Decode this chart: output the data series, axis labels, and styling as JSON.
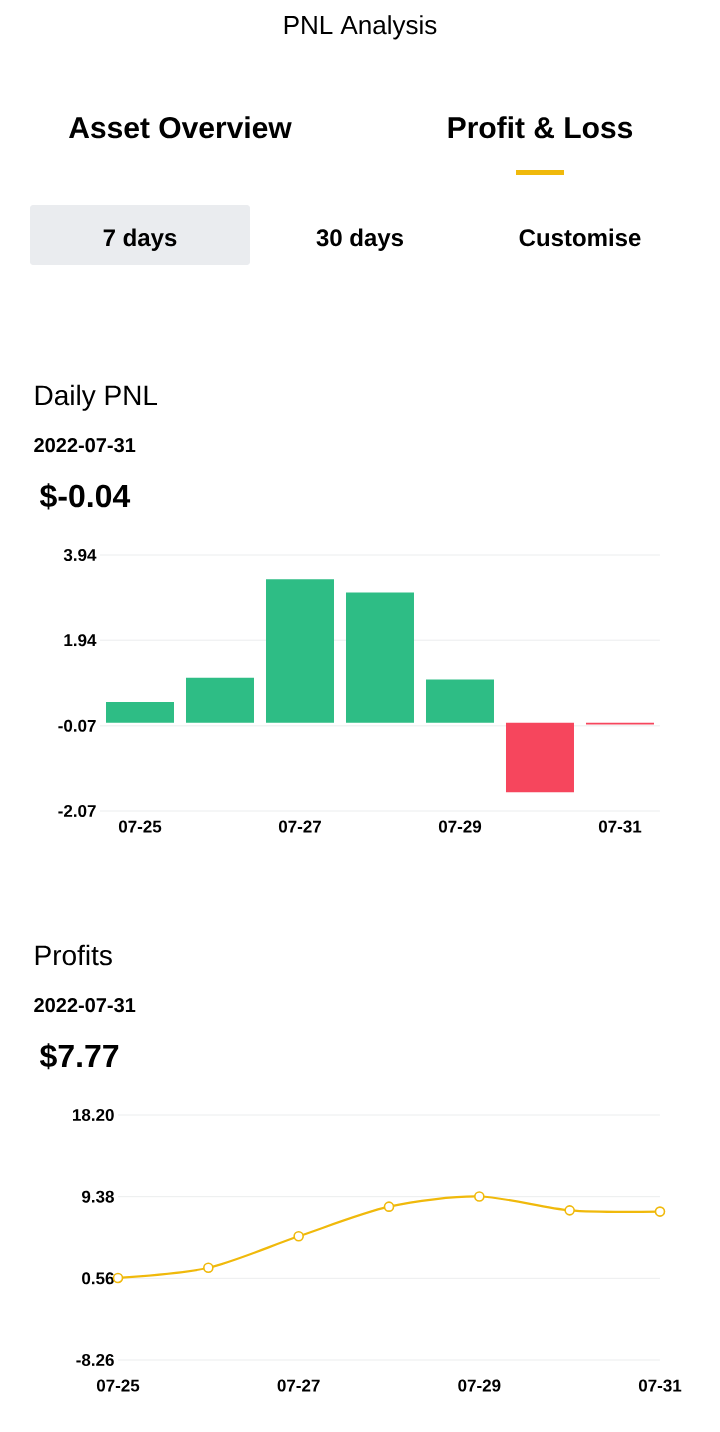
{
  "chart_data": [
    {
      "type": "other",
      "title": "PNL Analysis",
      "annotations": [
        "Asset Overview",
        "Profit & Loss",
        "7 days",
        "30 days",
        "Customise"
      ]
    },
    {
      "type": "bar",
      "title": "Daily PNL",
      "subtitle": "2022-07-31",
      "annotations": [
        "$-0.04"
      ],
      "categories": [
        "07-25",
        null,
        "07-27",
        null,
        "07-29",
        null,
        "07-31"
      ],
      "values": [
        0.49,
        1.06,
        3.37,
        3.06,
        1.02,
        -1.63,
        -0.04
      ],
      "colors": [
        "#2ebd85",
        "#2ebd85",
        "#2ebd85",
        "#2ebd85",
        "#2ebd85",
        "#f6465d",
        "#f6465d"
      ],
      "ylim": [
        -2.07,
        3.94
      ],
      "yticks": [
        -2.07,
        -0.07,
        1.94,
        3.94
      ],
      "grid": "y"
    },
    {
      "type": "line",
      "title": "Profits",
      "subtitle": "2022-07-31",
      "annotations": [
        "$7.77"
      ],
      "categories": [
        "07-25",
        null,
        "07-27",
        null,
        "07-29",
        null,
        "07-31"
      ],
      "values": [
        0.6,
        1.7,
        5.1,
        8.3,
        9.4,
        7.9,
        7.77
      ],
      "color": "#f0b90b",
      "ylim": [
        -8.26,
        18.2
      ],
      "yticks": [
        -8.26,
        0.56,
        9.38,
        {
          "value": 18.2,
          "label": "18.20"
        }
      ],
      "grid": "y",
      "marker": "circle"
    }
  ]
}
